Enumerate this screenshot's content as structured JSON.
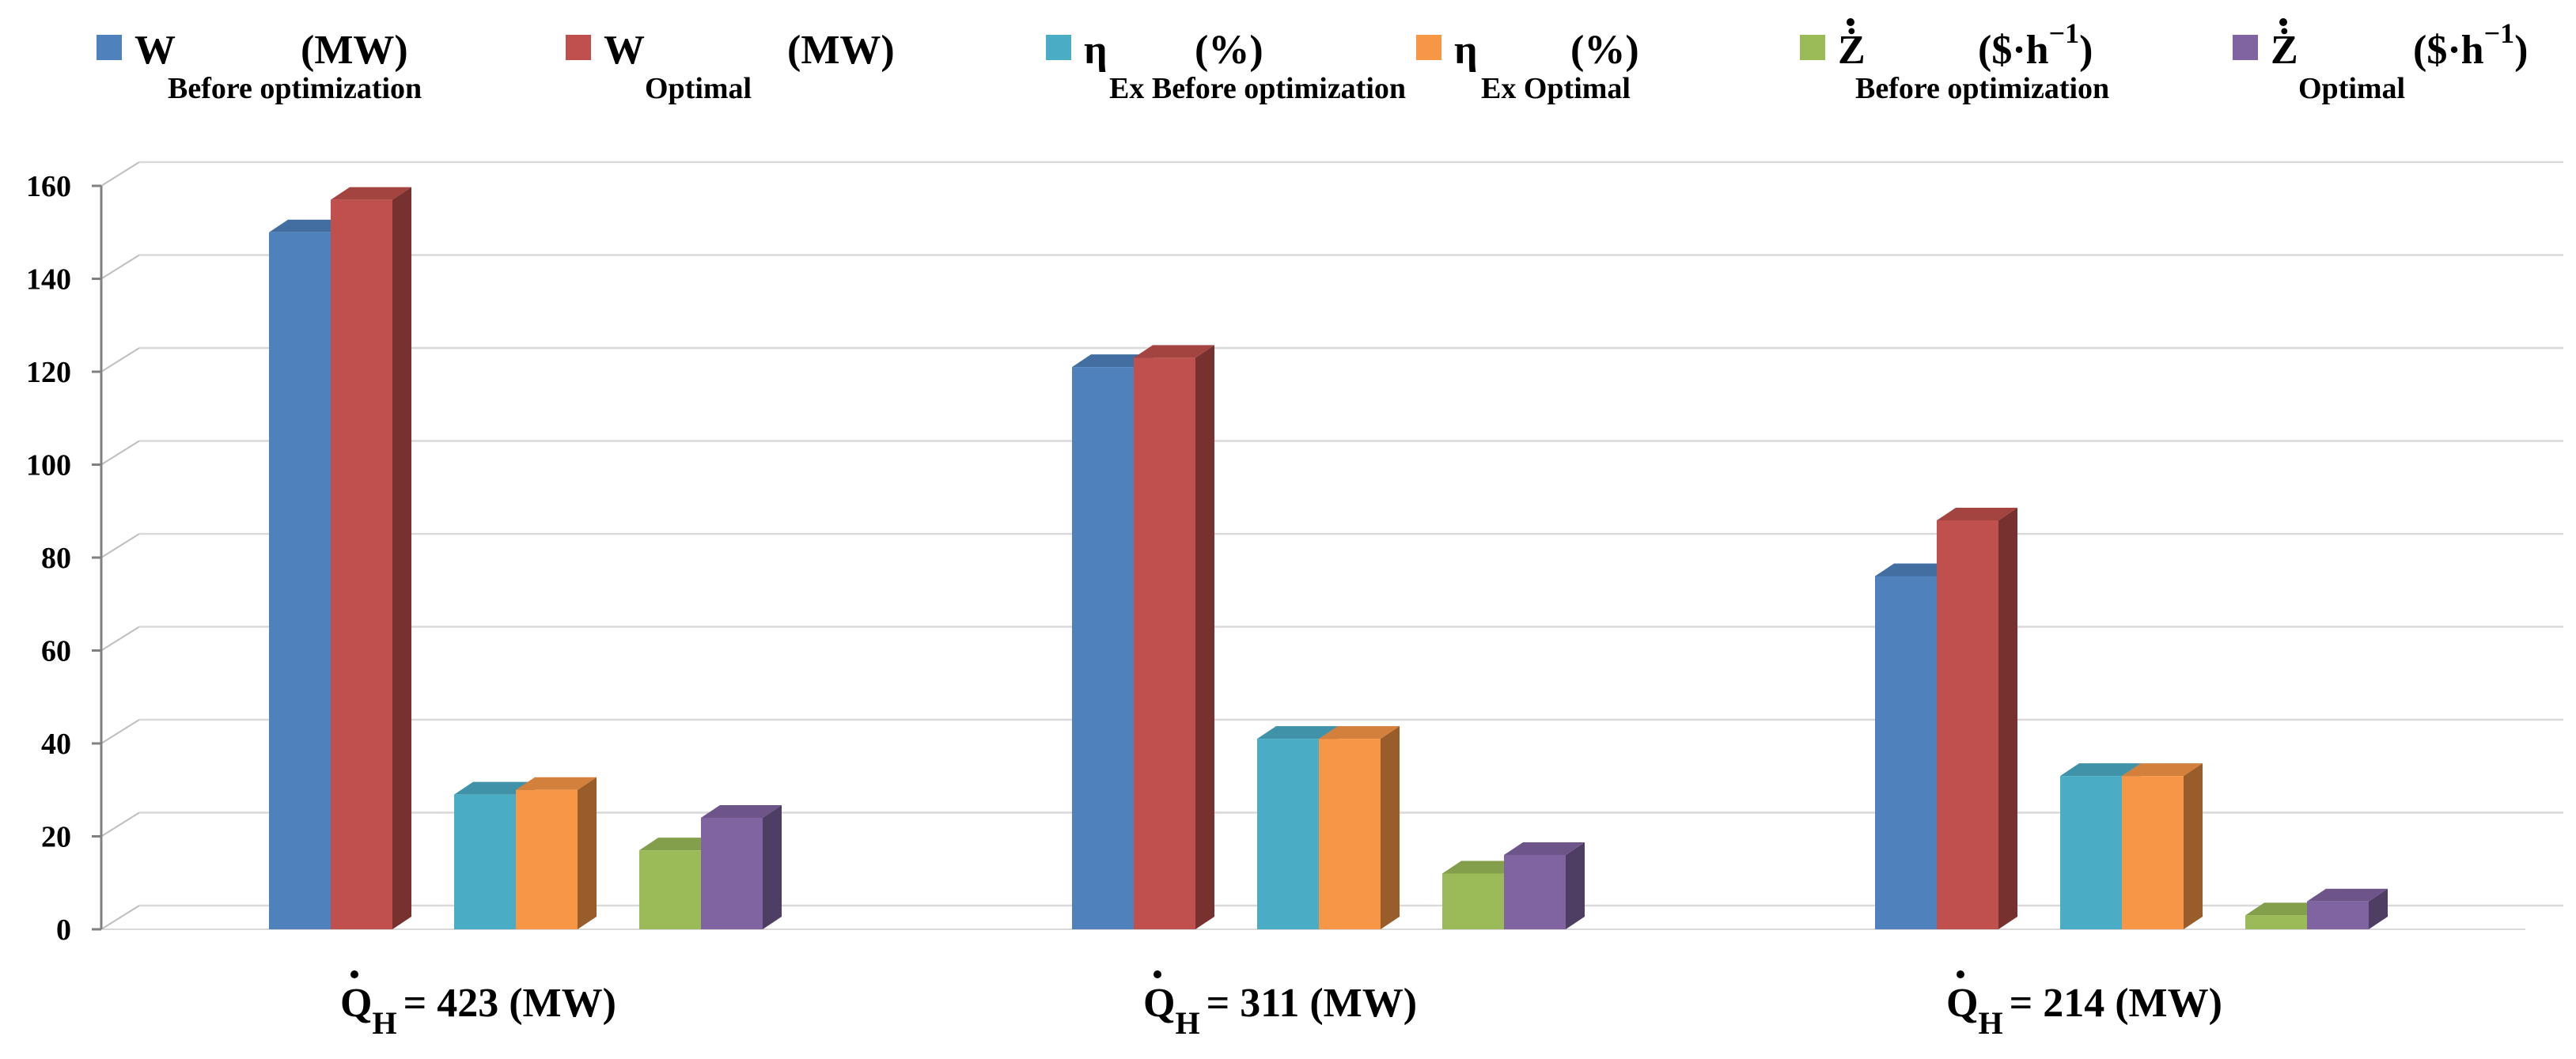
{
  "chart_data": {
    "type": "bar",
    "style": "3d-clustered-column",
    "ylim": [
      0,
      160
    ],
    "yticks": [
      0,
      20,
      40,
      60,
      80,
      100,
      120,
      140,
      160
    ],
    "categories": [
      {
        "symbol": "Q",
        "sub": "H",
        "text": "= 423 (MW)"
      },
      {
        "symbol": "Q",
        "sub": "H",
        "text": "= 311 (MW)"
      },
      {
        "symbol": "Q",
        "sub": "H",
        "text": "= 214 (MW)"
      }
    ],
    "series": [
      {
        "name": "W Before optimization (MW)",
        "symbol": "W",
        "sub": "Before optimization",
        "unit": "(MW)",
        "color": "#4F81BD",
        "values": [
          150,
          121,
          76
        ]
      },
      {
        "name": "W Optimal (MW)",
        "symbol": "W",
        "sub": "Optimal",
        "unit": "(MW)",
        "color": "#C0504D",
        "values": [
          157,
          123,
          88
        ]
      },
      {
        "name": "η Ex Before optimization (%)",
        "symbol": "η",
        "sub": "Ex Before optimization",
        "unit": "(%)",
        "color": "#4BACC6",
        "values": [
          29,
          41,
          33
        ]
      },
      {
        "name": "η Ex Optimal (%)",
        "symbol": "η",
        "sub": "Ex Optimal",
        "unit": "(%)",
        "color": "#F79646",
        "values": [
          30,
          41,
          33
        ]
      },
      {
        "name": "Ż Before optimization ($·h⁻¹)",
        "symbol": "Ż",
        "sub": "Before optimization",
        "unit": "($·h",
        "unit_sup": "−1",
        "unit_close": ")",
        "color": "#9BBB59",
        "values": [
          17,
          12,
          3
        ]
      },
      {
        "name": "Ż Optimal ($·h⁻¹)",
        "symbol": "Ż",
        "sub": "Optimal",
        "unit": "($·h",
        "unit_sup": "−1",
        "unit_close": ")",
        "color": "#8064A2",
        "values": [
          24,
          16,
          6
        ]
      }
    ],
    "legend_position": "top",
    "grid": true
  }
}
